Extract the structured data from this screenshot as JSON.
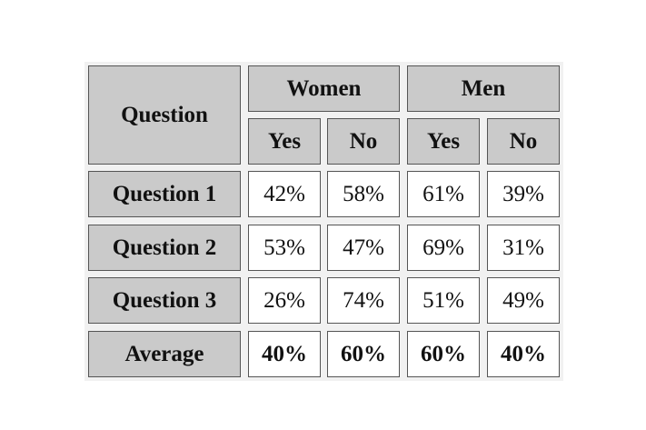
{
  "table": {
    "header": {
      "question": "Question",
      "groups": [
        "Women",
        "Men"
      ],
      "subheaders": [
        "Yes",
        "No",
        "Yes",
        "No"
      ]
    },
    "rows": [
      {
        "label": "Question 1",
        "cells": [
          "42%",
          "58%",
          "61%",
          "39%"
        ]
      },
      {
        "label": "Question 2",
        "cells": [
          "53%",
          "47%",
          "69%",
          "31%"
        ]
      },
      {
        "label": "Question 3",
        "cells": [
          "26%",
          "74%",
          "51%",
          "49%"
        ]
      },
      {
        "label": "Average",
        "cells": [
          "40%",
          "60%",
          "60%",
          "40%"
        ]
      }
    ]
  }
}
